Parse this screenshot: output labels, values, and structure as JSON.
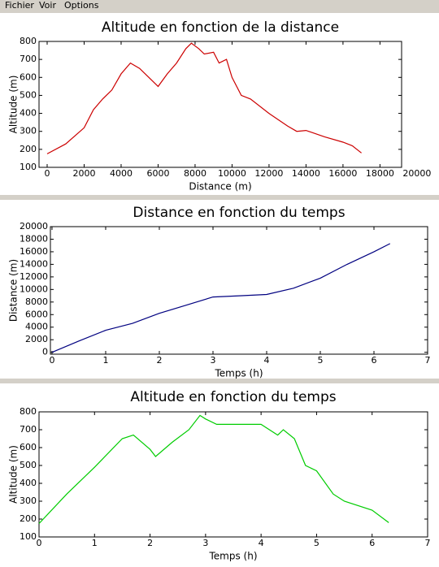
{
  "menu": [
    "Fichier",
    "Voir",
    "Options"
  ],
  "chart_data": [
    {
      "type": "line",
      "title": "Altitude en fonction de la distance",
      "xlabel": "Distance (m)",
      "ylabel": "Altitude (m)",
      "color": "#cc0000",
      "x": [
        0,
        1000,
        2000,
        2500,
        3000,
        3500,
        4000,
        4500,
        5000,
        5500,
        6000,
        6500,
        7000,
        7500,
        7800,
        8200,
        8500,
        9000,
        9300,
        9700,
        10000,
        10500,
        11000,
        12000,
        13000,
        13500,
        14000,
        15000,
        16000,
        16500,
        17000
      ],
      "values": [
        175,
        230,
        320,
        420,
        480,
        530,
        620,
        680,
        650,
        600,
        550,
        620,
        680,
        760,
        790,
        760,
        730,
        740,
        680,
        700,
        600,
        500,
        480,
        400,
        330,
        300,
        305,
        270,
        240,
        220,
        180
      ],
      "xlim": [
        -440,
        19170
      ],
      "xticks": [
        0,
        2000,
        4000,
        6000,
        8000,
        10000,
        12000,
        14000,
        16000,
        18000,
        20000
      ],
      "ylim": [
        100,
        800
      ],
      "yticks": [
        100,
        200,
        300,
        400,
        500,
        600,
        700,
        800
      ]
    },
    {
      "type": "line",
      "title": "Distance en fonction du temps",
      "xlabel": "Temps (h)",
      "ylabel": "Distance (m)",
      "color": "#000080",
      "x": [
        0,
        0.5,
        1,
        1.5,
        2,
        2.5,
        3,
        3.5,
        4,
        4.5,
        5,
        5.5,
        6,
        6.3
      ],
      "values": [
        0,
        1800,
        3500,
        4600,
        6200,
        7500,
        8800,
        9000,
        9200,
        10200,
        11800,
        14000,
        16000,
        17300
      ],
      "xlim": [
        -0.03,
        7
      ],
      "xticks": [
        0,
        1,
        2,
        3,
        4,
        5,
        6,
        7
      ],
      "ylim": [
        -300,
        20000
      ],
      "yticks": [
        0,
        2000,
        4000,
        6000,
        8000,
        10000,
        12000,
        14000,
        16000,
        18000,
        20000
      ]
    },
    {
      "type": "line",
      "title": "Altitude en fonction du temps",
      "xlabel": "Temps (h)",
      "ylabel": "Altitude (m)",
      "color": "#00cc00",
      "x": [
        0,
        0.5,
        1,
        1.5,
        1.7,
        2,
        2.1,
        2.4,
        2.7,
        2.9,
        3,
        3.2,
        4,
        4.3,
        4.4,
        4.6,
        4.8,
        5,
        5.3,
        5.5,
        6,
        6.3
      ],
      "values": [
        175,
        340,
        490,
        650,
        670,
        590,
        550,
        630,
        700,
        780,
        760,
        730,
        730,
        670,
        700,
        650,
        500,
        470,
        340,
        300,
        250,
        180
      ],
      "xlim": [
        0,
        7
      ],
      "xticks": [
        0,
        1,
        2,
        3,
        4,
        5,
        6,
        7
      ],
      "ylim": [
        100,
        800
      ],
      "yticks": [
        100,
        200,
        300,
        400,
        500,
        600,
        700,
        800
      ]
    }
  ]
}
